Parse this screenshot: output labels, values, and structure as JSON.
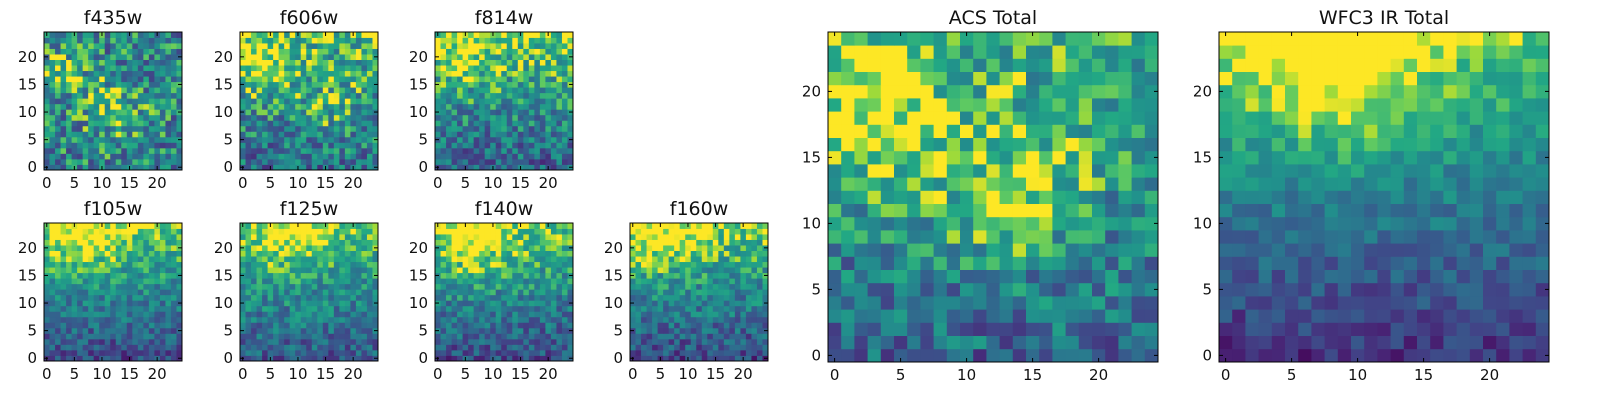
{
  "figure": {
    "background": "#ffffff",
    "colormap": "viridis"
  },
  "chart_data": [
    {
      "type": "heatmap",
      "title": "f435w",
      "xticks": [
        "0",
        "5",
        "10",
        "15",
        "20"
      ],
      "yticks": [
        "0",
        "5",
        "10",
        "15",
        "20"
      ],
      "xlim": [
        -0.5,
        24.5
      ],
      "ylim": [
        -0.5,
        24.5
      ],
      "grid_size": [
        25,
        25
      ],
      "pattern": "noisy, bright patches around (3,17) and (12,11)",
      "field": {
        "seed": 11,
        "base": 0.56,
        "grad": 0.0,
        "noise": 0.34,
        "blobs": [
          {
            "x": 12,
            "y": 11,
            "r": 4,
            "a": 0.25
          },
          {
            "x": 3,
            "y": 17,
            "r": 3,
            "a": 0.25
          }
        ]
      }
    },
    {
      "type": "heatmap",
      "title": "f606w",
      "xticks": [
        "0",
        "5",
        "10",
        "15",
        "20"
      ],
      "yticks": [
        "0",
        "5",
        "10",
        "15",
        "20"
      ],
      "xlim": [
        -0.5,
        24.5
      ],
      "ylim": [
        -0.5,
        24.5
      ],
      "grid_size": [
        25,
        25
      ],
      "pattern": "brighter toward the top, bright patch around (3,19)",
      "field": {
        "seed": 22,
        "base": 0.45,
        "grad": 0.35,
        "noise": 0.3,
        "blobs": [
          {
            "x": 3,
            "y": 19,
            "r": 4,
            "a": 0.3
          },
          {
            "x": 16,
            "y": 10,
            "r": 4,
            "a": 0.15
          }
        ]
      }
    },
    {
      "type": "heatmap",
      "title": "f814w",
      "xticks": [
        "0",
        "5",
        "10",
        "15",
        "20"
      ],
      "yticks": [
        "0",
        "5",
        "10",
        "15",
        "20"
      ],
      "xlim": [
        -0.5,
        24.5
      ],
      "ylim": [
        -0.5,
        24.5
      ],
      "grid_size": [
        25,
        25
      ],
      "pattern": "brighter toward the top, darker bottom rows",
      "field": {
        "seed": 33,
        "base": 0.4,
        "grad": 0.45,
        "noise": 0.28,
        "blobs": [
          {
            "x": 5,
            "y": 22,
            "r": 5,
            "a": 0.2
          }
        ]
      }
    },
    {
      "type": "heatmap",
      "title": "f105w",
      "xticks": [
        "0",
        "5",
        "10",
        "15",
        "20"
      ],
      "yticks": [
        "0",
        "5",
        "10",
        "15",
        "20"
      ],
      "xlim": [
        -0.5,
        24.5
      ],
      "ylim": [
        -0.5,
        24.5
      ],
      "grid_size": [
        25,
        25
      ],
      "pattern": "bright top-left, dark bottom",
      "field": {
        "seed": 44,
        "base": 0.28,
        "grad": 0.6,
        "noise": 0.2,
        "blobs": [
          {
            "x": 6,
            "y": 23,
            "r": 5,
            "a": 0.25
          }
        ]
      }
    },
    {
      "type": "heatmap",
      "title": "f125w",
      "xticks": [
        "0",
        "5",
        "10",
        "15",
        "20"
      ],
      "yticks": [
        "0",
        "5",
        "10",
        "15",
        "20"
      ],
      "xlim": [
        -0.5,
        24.5
      ],
      "ylim": [
        -0.5,
        24.5
      ],
      "grid_size": [
        25,
        25
      ],
      "pattern": "bright top band, mid-green body",
      "field": {
        "seed": 55,
        "base": 0.35,
        "grad": 0.5,
        "noise": 0.22,
        "blobs": [
          {
            "x": 9,
            "y": 23,
            "r": 5,
            "a": 0.25
          }
        ]
      }
    },
    {
      "type": "heatmap",
      "title": "f140w",
      "xticks": [
        "0",
        "5",
        "10",
        "15",
        "20"
      ],
      "yticks": [
        "0",
        "5",
        "10",
        "15",
        "20"
      ],
      "xlim": [
        -0.5,
        24.5
      ],
      "ylim": [
        -0.5,
        24.5
      ],
      "grid_size": [
        25,
        25
      ],
      "pattern": "bright top-left, dark bottom",
      "field": {
        "seed": 66,
        "base": 0.3,
        "grad": 0.58,
        "noise": 0.22,
        "blobs": [
          {
            "x": 6,
            "y": 22,
            "r": 5,
            "a": 0.25
          }
        ]
      }
    },
    {
      "type": "heatmap",
      "title": "f160w",
      "xticks": [
        "0",
        "5",
        "10",
        "15",
        "20"
      ],
      "yticks": [
        "0",
        "5",
        "10",
        "15",
        "20"
      ],
      "xlim": [
        -0.5,
        24.5
      ],
      "ylim": [
        -0.5,
        24.5
      ],
      "grid_size": [
        25,
        25
      ],
      "pattern": "bright top-left, dark bottom",
      "field": {
        "seed": 77,
        "base": 0.28,
        "grad": 0.6,
        "noise": 0.22,
        "blobs": [
          {
            "x": 5,
            "y": 23,
            "r": 5,
            "a": 0.25
          }
        ]
      }
    },
    {
      "type": "heatmap",
      "title": "ACS Total",
      "xticks": [
        "0",
        "5",
        "10",
        "15",
        "20"
      ],
      "yticks": [
        "0",
        "5",
        "10",
        "15",
        "20"
      ],
      "xlim": [
        -0.5,
        24.5
      ],
      "ylim": [
        -0.5,
        24.5
      ],
      "grid_size": [
        25,
        25
      ],
      "pattern": "bright yellow at top and left around (3,18), patch near (12,11), dark spots at left edge and bottom",
      "field": {
        "seed": 88,
        "base": 0.42,
        "grad": 0.35,
        "noise": 0.26,
        "blobs": [
          {
            "x": 3,
            "y": 18,
            "r": 4,
            "a": 0.4
          },
          {
            "x": 12,
            "y": 11,
            "r": 3,
            "a": 0.3
          },
          {
            "x": 16,
            "y": 14,
            "r": 3,
            "a": 0.2
          }
        ]
      }
    },
    {
      "type": "heatmap",
      "title": "WFC3 IR Total",
      "xticks": [
        "0",
        "5",
        "10",
        "15",
        "20"
      ],
      "yticks": [
        "0",
        "5",
        "10",
        "15",
        "20"
      ],
      "xlim": [
        -0.5,
        24.5
      ],
      "ylim": [
        -0.5,
        24.5
      ],
      "grid_size": [
        25,
        25
      ],
      "pattern": "smooth gradient, yellow at top, dark purple at bottom rows",
      "field": {
        "seed": 99,
        "base": 0.18,
        "grad": 0.7,
        "noise": 0.14,
        "blobs": [
          {
            "x": 8,
            "y": 23,
            "r": 5,
            "a": 0.35
          }
        ]
      }
    }
  ]
}
